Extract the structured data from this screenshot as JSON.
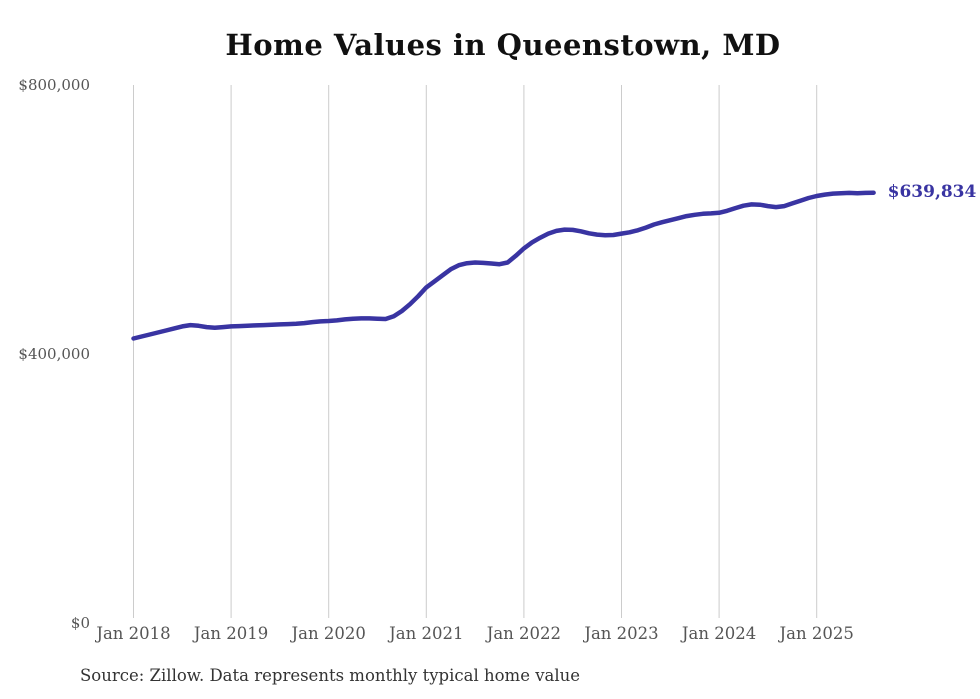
{
  "chart_data": {
    "type": "line",
    "title": "Home Values in Queenstown, MD",
    "source_note": "Source: Zillow. Data represents monthly typical home value",
    "end_label": "$639,834",
    "end_value": 639834,
    "x_ticks": [
      "Jan 2018",
      "Jan 2019",
      "Jan 2020",
      "Jan 2021",
      "Jan 2022",
      "Jan 2023",
      "Jan 2024",
      "Jan 2025"
    ],
    "y_ticks": [
      {
        "label": "$0",
        "value": 0
      },
      {
        "label": "$400,000",
        "value": 400000
      },
      {
        "label": "$800,000",
        "value": 800000
      }
    ],
    "ylim": [
      0,
      800000
    ],
    "grid": "vertical-only",
    "legend_position": "none",
    "series": [
      {
        "name": "Monthly typical home value",
        "start_month": "Jan 2018",
        "frequency": "monthly",
        "values": [
          423000,
          426000,
          429000,
          432000,
          435000,
          438000,
          441000,
          443000,
          442000,
          440000,
          439000,
          440000,
          441000,
          441500,
          442000,
          442500,
          443000,
          443500,
          444000,
          444500,
          445000,
          446000,
          447500,
          448500,
          449000,
          450000,
          451500,
          452500,
          453000,
          453000,
          452500,
          452000,
          456000,
          464000,
          474000,
          486000,
          499000,
          508000,
          517000,
          526000,
          532000,
          535000,
          536000,
          535500,
          534500,
          533500,
          536000,
          546000,
          557000,
          566000,
          573000,
          579000,
          583000,
          585000,
          584500,
          582500,
          579500,
          577500,
          576500,
          577000,
          579000,
          581000,
          584000,
          588000,
          592500,
          596000,
          599000,
          602000,
          605000,
          607000,
          608500,
          609000,
          610000,
          613000,
          617000,
          620500,
          622500,
          622000,
          620000,
          618500,
          620000,
          624000,
          628000,
          632000,
          635000,
          637000,
          638500,
          639000,
          639500,
          639000,
          639500,
          639834
        ]
      }
    ],
    "colors": {
      "line": "#3934a2",
      "grid": "#cccccc",
      "tick_text": "#555555",
      "title_text": "#111111",
      "source_text": "#333333"
    }
  }
}
